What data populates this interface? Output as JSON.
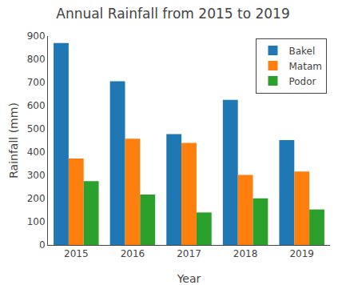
{
  "chart_data": {
    "type": "bar",
    "title": "Annual Rainfall from 2015 to 2019",
    "xlabel": "Year",
    "ylabel": "Rainfall (mm)",
    "categories": [
      "2015",
      "2016",
      "2017",
      "2018",
      "2019"
    ],
    "series": [
      {
        "name": "Bakel",
        "values": [
          870,
          705,
          478,
          625,
          452
        ]
      },
      {
        "name": "Matam",
        "values": [
          372,
          458,
          440,
          302,
          316
        ]
      },
      {
        "name": "Podor",
        "values": [
          275,
          217,
          140,
          201,
          153
        ]
      }
    ],
    "ylim": [
      0,
      900
    ],
    "yticks": [
      0,
      100,
      200,
      300,
      400,
      500,
      600,
      700,
      800,
      900
    ],
    "grid": false,
    "legend": "upper right"
  }
}
